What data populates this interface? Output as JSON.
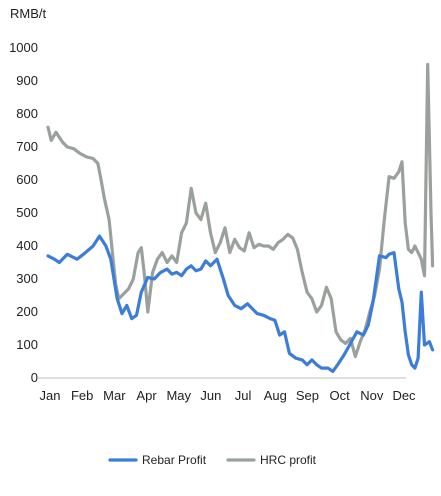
{
  "chart_data": {
    "type": "line",
    "title": "",
    "ylabel": "RMB/t",
    "xlabel": "",
    "ylim": [
      0,
      1000
    ],
    "yticks": [
      0,
      100,
      200,
      300,
      400,
      500,
      600,
      700,
      800,
      900,
      1000
    ],
    "categories": [
      "Jan",
      "Feb",
      "Mar",
      "Apr",
      "May",
      "Jun",
      "Jul",
      "Aug",
      "Sep",
      "Oct",
      "Nov",
      "Dec"
    ],
    "grid": false,
    "legend": "bottom",
    "series": [
      {
        "name": "Rebar Profit",
        "color": "#3b7dd8",
        "x": [
          0,
          0.2,
          0.35,
          0.6,
          0.9,
          1.1,
          1.4,
          1.6,
          1.8,
          1.95,
          2.05,
          2.15,
          2.3,
          2.45,
          2.6,
          2.75,
          2.9,
          3.1,
          3.3,
          3.5,
          3.7,
          3.85,
          4.0,
          4.15,
          4.3,
          4.45,
          4.6,
          4.75,
          4.9,
          5.05,
          5.25,
          5.45,
          5.6,
          5.8,
          6.0,
          6.2,
          6.5,
          6.7,
          6.9,
          7.05,
          7.2,
          7.35,
          7.5,
          7.7,
          7.9,
          8.05,
          8.2,
          8.35,
          8.5,
          8.7,
          8.85,
          9.0,
          9.2,
          9.4,
          9.6,
          9.8,
          9.95,
          10.1,
          10.3,
          10.5,
          10.6,
          10.75,
          10.9,
          11.0,
          11.1,
          11.2,
          11.3,
          11.4,
          11.5,
          11.6,
          11.7,
          11.85,
          11.95
        ],
        "values": [
          370,
          360,
          350,
          375,
          360,
          375,
          400,
          430,
          400,
          360,
          300,
          240,
          195,
          220,
          180,
          190,
          260,
          305,
          300,
          320,
          330,
          315,
          320,
          310,
          330,
          340,
          325,
          330,
          355,
          340,
          360,
          300,
          250,
          220,
          210,
          225,
          195,
          190,
          180,
          175,
          130,
          140,
          75,
          60,
          55,
          40,
          55,
          40,
          30,
          30,
          20,
          40,
          70,
          105,
          140,
          130,
          160,
          230,
          370,
          365,
          375,
          380,
          270,
          230,
          140,
          70,
          40,
          30,
          60,
          260,
          100,
          110,
          85
        ]
      },
      {
        "name": "HRC profit",
        "color": "#9aa19c",
        "x": [
          0,
          0.1,
          0.25,
          0.45,
          0.6,
          0.8,
          1.0,
          1.2,
          1.4,
          1.55,
          1.65,
          1.75,
          1.9,
          2.0,
          2.1,
          2.2,
          2.35,
          2.5,
          2.65,
          2.8,
          2.9,
          3.0,
          3.1,
          3.25,
          3.4,
          3.55,
          3.7,
          3.85,
          4.0,
          4.15,
          4.3,
          4.45,
          4.6,
          4.75,
          4.9,
          5.05,
          5.2,
          5.35,
          5.5,
          5.65,
          5.8,
          5.95,
          6.1,
          6.25,
          6.4,
          6.55,
          6.7,
          6.85,
          7.0,
          7.15,
          7.3,
          7.45,
          7.6,
          7.75,
          7.9,
          8.05,
          8.2,
          8.35,
          8.5,
          8.65,
          8.8,
          8.95,
          9.1,
          9.25,
          9.4,
          9.55,
          9.7,
          9.85,
          10.0,
          10.15,
          10.3,
          10.45,
          10.6,
          10.75,
          10.9,
          11.0,
          11.1,
          11.2,
          11.3,
          11.4,
          11.5,
          11.6,
          11.7,
          11.8,
          11.9,
          11.95
        ],
        "values": [
          760,
          720,
          745,
          715,
          700,
          695,
          680,
          670,
          665,
          650,
          600,
          545,
          480,
          380,
          285,
          240,
          255,
          270,
          300,
          380,
          395,
          310,
          200,
          320,
          360,
          380,
          350,
          370,
          350,
          440,
          470,
          575,
          500,
          480,
          530,
          440,
          380,
          410,
          455,
          380,
          420,
          395,
          385,
          440,
          395,
          405,
          400,
          400,
          390,
          410,
          420,
          435,
          425,
          390,
          320,
          260,
          240,
          200,
          220,
          275,
          240,
          140,
          115,
          105,
          120,
          65,
          110,
          145,
          200,
          250,
          330,
          480,
          610,
          605,
          625,
          655,
          470,
          390,
          380,
          400,
          380,
          360,
          310,
          950,
          500,
          340
        ]
      }
    ]
  }
}
